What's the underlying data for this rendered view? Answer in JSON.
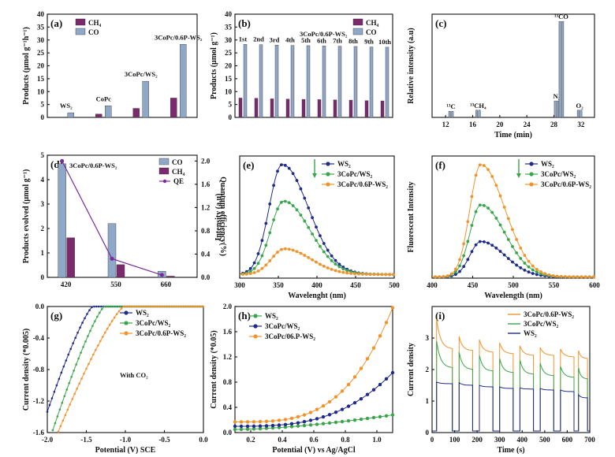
{
  "chart_data": [
    {
      "panel": "(a)",
      "type": "bar",
      "categories": [
        "WS2",
        "CoPc",
        "3CoPc/WS2",
        "3CoPc/0.6P-WS2"
      ],
      "category_labels": [
        "WS₂",
        "CoPc",
        "3CoPc/WS₂",
        "3CoPc/0.6P-WS₂"
      ],
      "series": [
        {
          "name": "CH₄",
          "color": "#7b2a6e",
          "values": [
            0.0,
            1.3,
            3.5,
            7.5
          ]
        },
        {
          "name": "CO",
          "color": "#8fa8c8",
          "values": [
            1.8,
            4.5,
            14.0,
            28.3
          ]
        }
      ],
      "ylabel": "Products (μmol g⁻¹h⁻¹)",
      "ylim": [
        0,
        40
      ],
      "yticks": [
        "0",
        "5",
        "10",
        "15",
        "20",
        "25",
        "30",
        "35",
        "40"
      ]
    },
    {
      "panel": "(b)",
      "type": "bar",
      "categories": [
        "1st",
        "2nd",
        "3rd",
        "4th",
        "5th",
        "6th",
        "7th",
        "8th",
        "9th",
        "10th"
      ],
      "category_labels": [
        "1st",
        "2nd",
        "3rd",
        "4th",
        "5th",
        "6th",
        "7th",
        "8th",
        "9th",
        "10th"
      ],
      "series": [
        {
          "name": "CH₄",
          "color": "#7b2a6e",
          "values": [
            7.5,
            7.4,
            7.2,
            7.1,
            7.0,
            6.9,
            6.8,
            6.7,
            6.5,
            6.4
          ]
        },
        {
          "name": "CO",
          "color": "#8fa8c8",
          "values": [
            28.3,
            28.2,
            28.0,
            27.9,
            27.8,
            27.7,
            27.6,
            27.5,
            27.3,
            27.2
          ]
        }
      ],
      "annotation": "3CoPc/0.6P-WS₂",
      "ylabel": "Products (μmol g⁻¹)",
      "ylim": [
        0,
        40
      ],
      "yticks": [
        "0",
        "5",
        "10",
        "15",
        "20",
        "25",
        "30",
        "35",
        "40"
      ]
    },
    {
      "panel": "(c)",
      "type": "bar",
      "xlabel": "Time (min)",
      "ylabel": "Relative intensity (a.u)",
      "xlim": [
        10,
        34
      ],
      "ylim": [
        0,
        1
      ],
      "xticks": [
        "12",
        "16",
        "20",
        "24",
        "28",
        "32"
      ],
      "peaks": [
        {
          "label": "¹³C",
          "x": 12.8,
          "height": 0.06
        },
        {
          "label": "¹³CH₄",
          "x": 16.8,
          "height": 0.07
        },
        {
          "label": "N₂",
          "x": 28.4,
          "height": 0.16
        },
        {
          "label": "¹³CO",
          "x": 29.1,
          "height": 0.93
        },
        {
          "label": "O₂",
          "x": 31.8,
          "height": 0.07
        }
      ]
    },
    {
      "panel": "(d)",
      "type": "bar",
      "categories": [
        "420",
        "550",
        "660"
      ],
      "annotation": "3CoPc/0.6P-WS₂",
      "series": [
        {
          "name": "CO",
          "color": "#8fa8c8",
          "values": [
            4.65,
            2.2,
            0.25
          ]
        },
        {
          "name": "CH₄",
          "color": "#7b2a6e",
          "values": [
            1.62,
            0.52,
            0.05
          ]
        }
      ],
      "line_series": {
        "name": "QE",
        "color": "#7b2a9e",
        "values": [
          2.0,
          0.32,
          0.04
        ]
      },
      "xlabel": "",
      "ylabel": "Products evolved (μmol g⁻¹)",
      "ylabel_right": "Quantum efficiency(%)",
      "ylim": [
        0,
        5
      ],
      "ylim_right": [
        0,
        2.1
      ],
      "yticks": [
        "0",
        "1",
        "2",
        "3",
        "4",
        "5"
      ],
      "yticks_right": [
        "0.0",
        "0.4",
        "0.8",
        "1.2",
        "1.6",
        "2.0"
      ]
    },
    {
      "panel": "(e)",
      "type": "line",
      "xlabel": "Wavelenght (nm)",
      "ylabel": "Intensity (a.u)",
      "xlim": [
        300,
        500
      ],
      "ylim": [
        0,
        1
      ],
      "xticks": [
        "300",
        "350",
        "400",
        "450",
        "500"
      ],
      "series": [
        {
          "name": "WS₂",
          "color": "#1f2a8a",
          "peak_x": 355,
          "peak_y": 0.93,
          "width_left": 24,
          "width_right": 48,
          "base": 0.03
        },
        {
          "name": "3CoPc/WS₂",
          "color": "#3aa64a",
          "peak_x": 357,
          "peak_y": 0.63,
          "width_left": 24,
          "width_right": 48,
          "base": 0.03
        },
        {
          "name": "3CoPc/0.6P-WS₂",
          "color": "#f0932b",
          "peak_x": 358,
          "peak_y": 0.24,
          "width_left": 24,
          "width_right": 48,
          "base": 0.03
        }
      ]
    },
    {
      "panel": "(f)",
      "type": "line",
      "xlabel": "Wavelength (nm)",
      "ylabel": "Fluorescent Intensity",
      "xlim": [
        400,
        600
      ],
      "ylim": [
        0,
        1
      ],
      "xticks": [
        "400",
        "450",
        "500",
        "550",
        "600"
      ],
      "series": [
        {
          "name": "WS₂",
          "color": "#1f2a8a",
          "peak_x": 460,
          "peak_y": 0.3,
          "width_left": 19,
          "width_right": 42,
          "base": 0.01
        },
        {
          "name": "3CoPc/WS₂",
          "color": "#3aa64a",
          "peak_x": 460,
          "peak_y": 0.6,
          "width_left": 19,
          "width_right": 42,
          "base": 0.01
        },
        {
          "name": "3CoPc/0.6P-WS₂",
          "color": "#f0932b",
          "peak_x": 460,
          "peak_y": 0.93,
          "width_left": 19,
          "width_right": 42,
          "base": 0.01
        }
      ]
    },
    {
      "panel": "(g)",
      "type": "line",
      "annotation": "With CO₂",
      "xlabel": "Potential (V) SCE",
      "ylabel": "Current density (*0.005)",
      "xlim": [
        -2.0,
        0.0
      ],
      "ylim": [
        -1.6,
        0.0
      ],
      "xticks": [
        "-2.0",
        "-1.5",
        "-1.0",
        "-0.5",
        "0.0"
      ],
      "yticks": [
        "-1.6",
        "-1.2",
        "-0.8",
        "-0.4",
        "0.0"
      ],
      "series": [
        {
          "name": "WS₂",
          "color": "#1f2a8a",
          "onset": -1.42,
          "steep": 0.46
        },
        {
          "name": "3CoPc/WS₂",
          "color": "#3aa64a",
          "onset": -1.27,
          "steep": 0.46
        },
        {
          "name": "3CoPc/0.6P-WS₂",
          "color": "#f0932b",
          "onset": -1.02,
          "steep": 0.58
        }
      ]
    },
    {
      "panel": "(h)",
      "type": "line",
      "xlabel": "Potential (V) vs Ag/AgCl",
      "ylabel": "Current density (*0.05)",
      "xlim": [
        0.1,
        1.1
      ],
      "ylim": [
        0,
        2.0
      ],
      "xticks": [
        "0.2",
        "0.4",
        "0.6",
        "0.8",
        "1.0"
      ],
      "yticks": [
        "0.0",
        "0.4",
        "0.8",
        "1.2",
        "1.6",
        "2.0"
      ],
      "series": [
        {
          "name": "WS₂",
          "color": "#3aa64a",
          "y_start": 0.05,
          "y_end": 0.28,
          "pow": 1.6
        },
        {
          "name": "3CoPc/WS₂",
          "color": "#1f2a8a",
          "y_start": 0.1,
          "y_end": 0.95,
          "pow": 3.0
        },
        {
          "name": "3CoPc/06.P-WS₂",
          "color": "#f0932b",
          "y_start": 0.17,
          "y_end": 1.98,
          "pow": 3.4
        }
      ]
    },
    {
      "panel": "(i)",
      "type": "line",
      "xlabel": "Time (s)",
      "ylabel": "Current density",
      "xlim": [
        0,
        700
      ],
      "ylim": [
        0,
        4
      ],
      "xticks": [
        "0",
        "100",
        "200",
        "300",
        "400",
        "500",
        "600",
        "700"
      ],
      "yticks": [
        "0",
        "1",
        "2",
        "3"
      ],
      "on_periods": [
        [
          20,
          90
        ],
        [
          120,
          180
        ],
        [
          210,
          270
        ],
        [
          300,
          360
        ],
        [
          390,
          450
        ],
        [
          480,
          540
        ],
        [
          570,
          630
        ],
        [
          650,
          690
        ]
      ],
      "series": [
        {
          "name": "3CoPc/0.6P-WS₂",
          "color": "#f0932b",
          "on_start": [
            3.6,
            3.05,
            2.95,
            2.85,
            2.75,
            2.7,
            2.65,
            2.6
          ],
          "on_end": [
            2.65,
            2.6,
            2.55,
            2.5,
            2.45,
            2.45,
            2.4,
            2.35
          ]
        },
        {
          "name": "3CoPc/WS₂",
          "color": "#3aa64a",
          "on_start": [
            2.9,
            2.55,
            2.45,
            2.35,
            2.3,
            2.2,
            2.1,
            2.05
          ],
          "on_end": [
            2.05,
            2.0,
            1.95,
            1.9,
            1.85,
            1.8,
            1.75,
            1.7
          ]
        },
        {
          "name": "WS₂",
          "color": "#1f2a8a",
          "on_start": [
            1.6,
            1.58,
            1.5,
            1.45,
            1.42,
            1.4,
            1.35,
            1.2
          ],
          "on_end": [
            1.55,
            1.5,
            1.45,
            1.4,
            1.38,
            1.35,
            1.3,
            1.1
          ]
        }
      ],
      "baseline": 0.05
    }
  ]
}
